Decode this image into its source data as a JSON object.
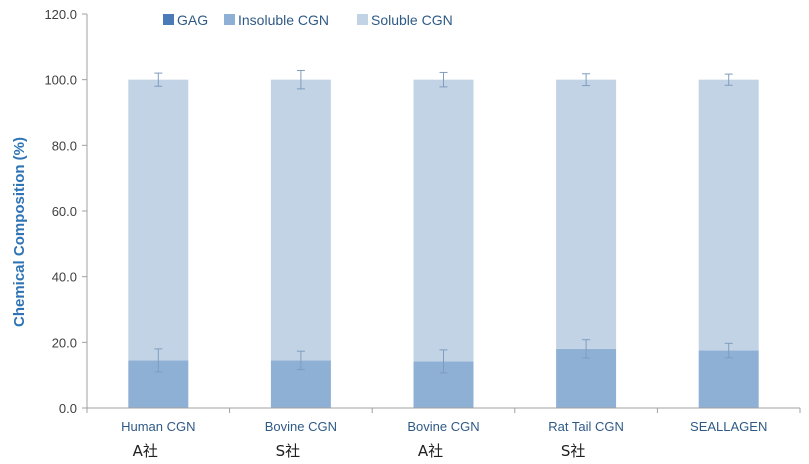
{
  "chart_data": {
    "type": "bar",
    "stacked": true,
    "title": "",
    "xlabel": "",
    "ylabel": "Chemical Composition (%)",
    "ylim": [
      0,
      120
    ],
    "yticks": [
      "0.0",
      "20.0",
      "40.0",
      "60.0",
      "80.0",
      "100.0",
      "120.0"
    ],
    "grid": false,
    "legend_position": "top",
    "categories": [
      "Human CGN",
      "Bovine CGN",
      "Bovine CGN",
      "Rat Tail CGN",
      "SEALLAGEN"
    ],
    "category_sublabels": [
      "A社",
      "S社",
      "A社",
      "S社",
      ""
    ],
    "series": [
      {
        "name": "GAG",
        "values": [
          0,
          0,
          0,
          0,
          0
        ],
        "color": "#4a7ab7"
      },
      {
        "name": "Insoluble CGN",
        "values": [
          14.5,
          14.5,
          14.2,
          18.0,
          17.5
        ],
        "errors": [
          3.5,
          2.8,
          3.5,
          2.8,
          2.2
        ],
        "color": "#8fb0d5"
      },
      {
        "name": "Soluble CGN",
        "values": [
          85.5,
          85.5,
          85.8,
          82.0,
          82.5
        ],
        "errors": [
          2.0,
          2.8,
          2.2,
          1.8,
          1.7
        ],
        "color": "#c3d3e6"
      }
    ]
  }
}
